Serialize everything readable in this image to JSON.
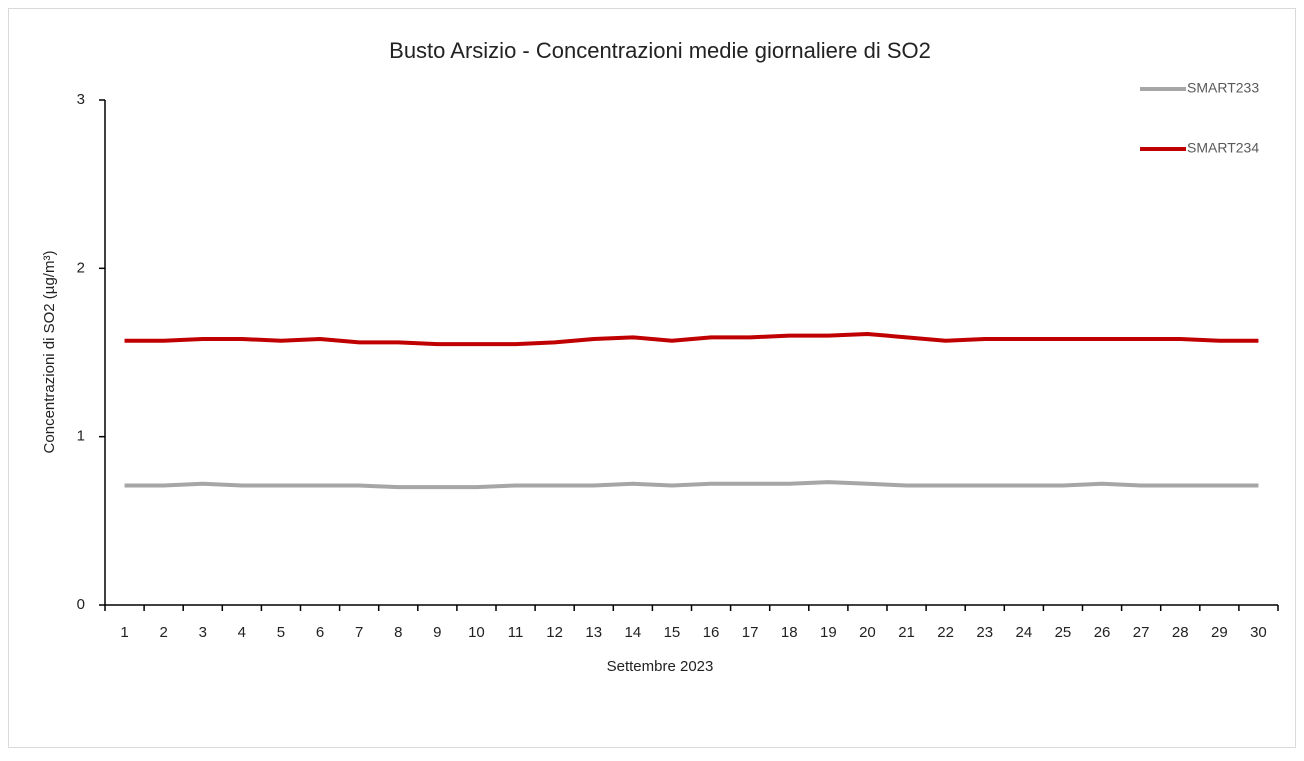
{
  "chart_data": {
    "type": "line",
    "title": "Busto Arsizio - Concentrazioni  medie giornaliere di SO2",
    "x_label": "Settembre 2023",
    "y_label": "Concentrazioni di SO2 (µg/m³)",
    "categories": [
      "1",
      "2",
      "3",
      "4",
      "5",
      "6",
      "7",
      "8",
      "9",
      "10",
      "11",
      "12",
      "13",
      "14",
      "15",
      "16",
      "17",
      "18",
      "19",
      "20",
      "21",
      "22",
      "23",
      "24",
      "25",
      "26",
      "27",
      "28",
      "29",
      "30"
    ],
    "series": [
      {
        "name": "SMART233",
        "color": "#a6a6a6",
        "values": [
          0.71,
          0.71,
          0.72,
          0.71,
          0.71,
          0.71,
          0.71,
          0.7,
          0.7,
          0.7,
          0.71,
          0.71,
          0.71,
          0.72,
          0.71,
          0.72,
          0.72,
          0.72,
          0.73,
          0.72,
          0.71,
          0.71,
          0.71,
          0.71,
          0.71,
          0.72,
          0.71,
          0.71,
          0.71,
          0.71
        ]
      },
      {
        "name": "SMART234",
        "color": "#c00000",
        "values": [
          1.57,
          1.57,
          1.58,
          1.58,
          1.57,
          1.58,
          1.56,
          1.56,
          1.55,
          1.55,
          1.55,
          1.56,
          1.58,
          1.59,
          1.57,
          1.59,
          1.59,
          1.6,
          1.6,
          1.61,
          1.59,
          1.57,
          1.58,
          1.58,
          1.58,
          1.58,
          1.58,
          1.58,
          1.57,
          1.57
        ]
      }
    ],
    "ylim": [
      0,
      3
    ],
    "yticks": [
      0,
      1,
      2,
      3
    ],
    "grid": false,
    "legend": "top-right"
  }
}
